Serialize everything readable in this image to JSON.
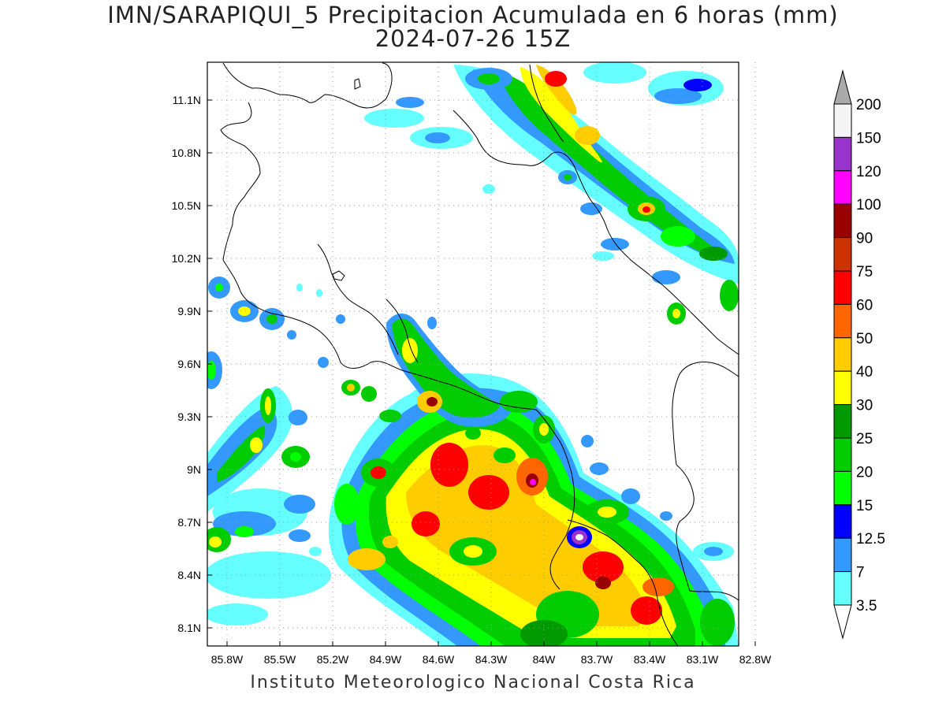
{
  "title_line1": "IMN/SARAPIQUI_5 Precipitacion Acumulada en 6 horas (mm)",
  "title_line2": "2024-07-26 15Z",
  "credit": "Instituto Meteorologico Nacional Costa Rica",
  "map": {
    "lon_range": [
      -86.0,
      -83.0
    ],
    "lat_range": [
      8.0,
      11.3
    ],
    "lon_ticks": [
      "85.8W",
      "85.5W",
      "85.2W",
      "84.9W",
      "84.6W",
      "84.3W",
      "84W",
      "83.7W",
      "83.4W",
      "83.1W",
      "82.8W"
    ],
    "lon_tick_values": [
      -85.8,
      -85.5,
      -85.2,
      -84.9,
      -84.6,
      -84.3,
      -84.0,
      -83.7,
      -83.4,
      -83.1,
      -82.8
    ],
    "lat_ticks": [
      "8.1N",
      "8.4N",
      "8.7N",
      "9N",
      "9.3N",
      "9.6N",
      "9.9N",
      "10.2N",
      "10.5N",
      "10.8N",
      "11.1N"
    ],
    "lat_tick_values": [
      8.1,
      8.4,
      8.7,
      9.0,
      9.3,
      9.6,
      9.9,
      10.2,
      10.5,
      10.8,
      11.1
    ],
    "grid": true
  },
  "legend": {
    "levels": [
      "3.5",
      "7",
      "12.5",
      "15",
      "20",
      "25",
      "30",
      "40",
      "50",
      "60",
      "75",
      "90",
      "100",
      "120",
      "150",
      "200"
    ],
    "colors": [
      "#ffffff",
      "#66ffff",
      "#3399ff",
      "#0000ff",
      "#00ff00",
      "#00cc00",
      "#009900",
      "#ffff00",
      "#ffcc00",
      "#ff6600",
      "#ff0000",
      "#cc3300",
      "#990000",
      "#ff00ff",
      "#9933cc",
      "#f5f5f5"
    ],
    "over_color": "#aaaaaa",
    "under_color": "#ffffff"
  }
}
